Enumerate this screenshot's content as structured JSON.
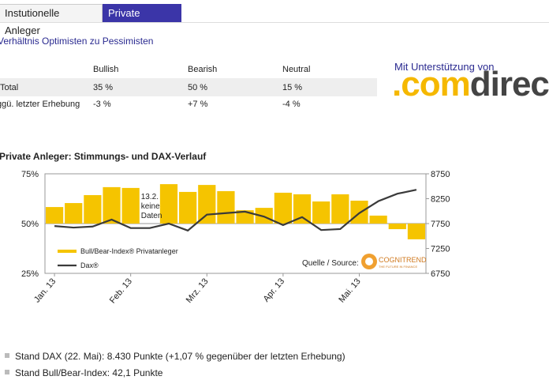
{
  "tabs": [
    "Instutionelle Anleger",
    "Private Anleger"
  ],
  "table": {
    "title": "Verhältnis Optimisten zu Pessimisten",
    "headers": [
      "Bullish",
      "Bearish",
      "Neutral"
    ],
    "rows": [
      [
        "Total",
        "35 %",
        "50 %",
        "15 %"
      ],
      [
        "ggü. letzter Erhebung",
        "-3 %",
        "+7 %",
        "-4 %"
      ]
    ]
  },
  "sponsor": {
    "text": "Mit Unterstützung von",
    "logo_dot": ".",
    "logo_a": "com",
    "logo_b": "direct"
  },
  "chart_data": {
    "type": "bar",
    "title": "Private Anleger: Stimmungs- und DAX-Verlauf",
    "categories": [
      "Jan. 13",
      null,
      null,
      null,
      "Feb. 13",
      null,
      null,
      null,
      "Mrz. 13",
      null,
      null,
      null,
      "Apr. 13",
      null,
      null,
      null,
      "Mai. 13",
      null,
      null,
      null
    ],
    "series": [
      {
        "name": "Bull/Bear-Index® Privatanleger",
        "color": "#f5c400",
        "axis": "y",
        "values": [
          58.3,
          60.3,
          64.3,
          68.3,
          67.9,
          null,
          69.8,
          65.9,
          69.4,
          66.3,
          56.7,
          57.9,
          65.5,
          64.7,
          61.1,
          64.7,
          61.5,
          54,
          47.2,
          42.1
        ]
      },
      {
        "name": "Dax®",
        "color": "#3a3a3a",
        "axis": "y2",
        "values": [
          7700,
          7670,
          7690,
          7830,
          7660,
          7660,
          7750,
          7610,
          7930,
          7960,
          7990,
          7890,
          7720,
          7880,
          7620,
          7640,
          7960,
          8200,
          8350,
          8430
        ]
      }
    ],
    "ylim": [
      25,
      75
    ],
    "yticks": [
      {
        "value": 25,
        "label": "25%"
      },
      {
        "value": 50,
        "label": "50%"
      },
      {
        "value": 75,
        "label": "75%"
      }
    ],
    "y2lim": [
      6750,
      8750
    ],
    "y2ticks": [
      6750,
      7250,
      7750,
      8250,
      8750
    ],
    "bar_baseline": 50,
    "grid": true,
    "annotation": {
      "category": 5,
      "lines": [
        "13.2.",
        "keine",
        "Daten"
      ]
    },
    "source": "Quelle / Source:",
    "source_logo": "COGNITREND",
    "source_logo_sub": "THE FUTURE IN FINANCE"
  },
  "bullets": [
    "Stand DAX (22. Mai): 8.430 Punkte (+1,07 % gegenüber der letzten Erhebung)",
    "Stand Bull/Bear-Index: 42,1 Punkte"
  ]
}
